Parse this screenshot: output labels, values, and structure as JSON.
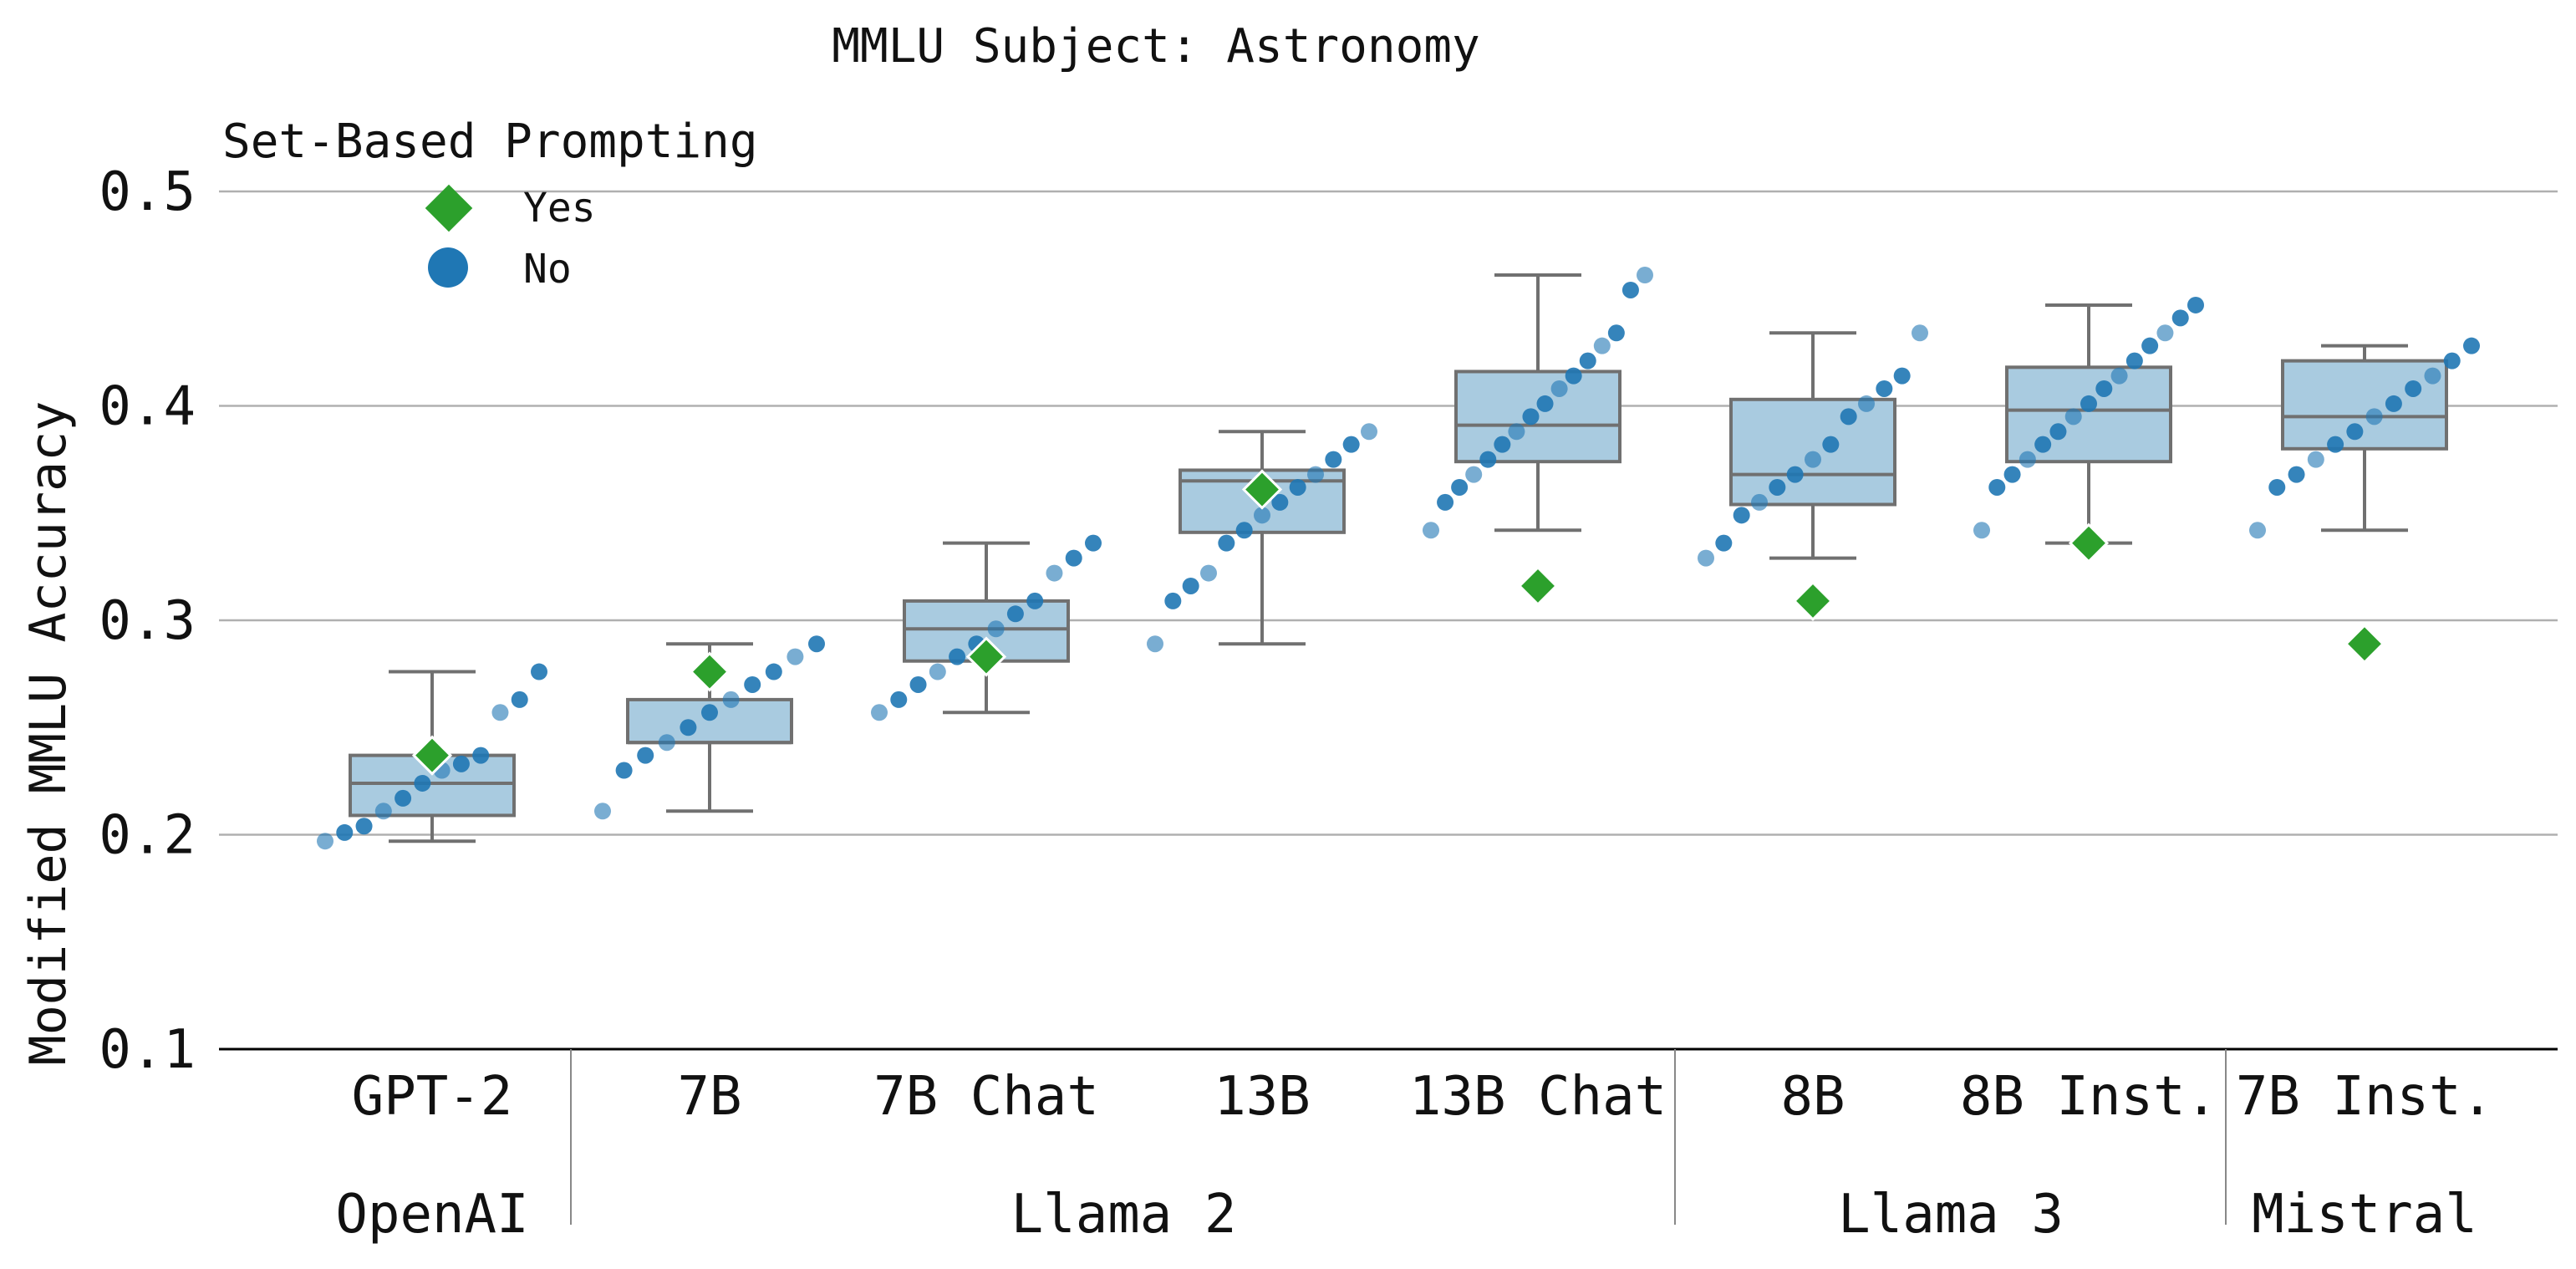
{
  "chart_data": {
    "type": "box",
    "title": "MMLU Subject: Astronomy",
    "ylabel": "Modified MMLU Accuracy",
    "ylim": [
      0.1,
      0.5
    ],
    "yticks": [
      "0.1",
      "0.2",
      "0.3",
      "0.4",
      "0.5"
    ],
    "grid": "horizontal",
    "legend": {
      "title": "Set-Based Prompting",
      "placement": "top-left",
      "entries": [
        {
          "label": "Yes",
          "marker": "diamond",
          "color": "#2ca02c"
        },
        {
          "label": "No",
          "marker": "circle",
          "color": "#1f77b4"
        }
      ]
    },
    "colors": {
      "box_fill": "#a9cbe0",
      "box_edge": "#707070",
      "points": "#1f77b4",
      "diamond": "#2ca02c",
      "grid": "#b0b0b0"
    },
    "groups": [
      {
        "label": "OpenAI",
        "start": 0,
        "end": 0
      },
      {
        "label": "Llama 2",
        "start": 1,
        "end": 4
      },
      {
        "label": "Llama 3",
        "start": 5,
        "end": 6
      },
      {
        "label": "Mistral",
        "start": 7,
        "end": 7
      }
    ],
    "categories": [
      "GPT-2",
      "7B",
      "7B Chat",
      "13B",
      "13B Chat",
      "8B",
      "8B Inst.",
      "7B Inst."
    ],
    "boxes": [
      {
        "whisker_low": 0.197,
        "q1": 0.209,
        "median": 0.224,
        "q3": 0.237,
        "whisker_high": 0.276
      },
      {
        "whisker_low": 0.211,
        "q1": 0.243,
        "median": 0.243,
        "q3": 0.263,
        "whisker_high": 0.289
      },
      {
        "whisker_low": 0.257,
        "q1": 0.281,
        "median": 0.296,
        "q3": 0.309,
        "whisker_high": 0.336
      },
      {
        "whisker_low": 0.289,
        "q1": 0.341,
        "median": 0.365,
        "q3": 0.37,
        "whisker_high": 0.388
      },
      {
        "whisker_low": 0.342,
        "q1": 0.374,
        "median": 0.391,
        "q3": 0.416,
        "whisker_high": 0.461
      },
      {
        "whisker_low": 0.329,
        "q1": 0.354,
        "median": 0.368,
        "q3": 0.403,
        "whisker_high": 0.434
      },
      {
        "whisker_low": 0.336,
        "q1": 0.374,
        "median": 0.398,
        "q3": 0.418,
        "whisker_high": 0.447
      },
      {
        "whisker_low": 0.342,
        "q1": 0.38,
        "median": 0.395,
        "q3": 0.421,
        "whisker_high": 0.428
      }
    ],
    "set_based_yes": [
      0.237,
      0.276,
      0.283,
      0.361,
      0.316,
      0.309,
      0.336,
      0.289
    ],
    "no_points": [
      [
        0.197,
        0.201,
        0.204,
        0.211,
        0.217,
        0.224,
        0.23,
        0.233,
        0.237,
        0.257,
        0.263,
        0.276
      ],
      [
        0.211,
        0.23,
        0.237,
        0.243,
        0.25,
        0.257,
        0.263,
        0.27,
        0.276,
        0.283,
        0.289
      ],
      [
        0.257,
        0.263,
        0.27,
        0.276,
        0.283,
        0.289,
        0.296,
        0.303,
        0.309,
        0.322,
        0.329,
        0.336
      ],
      [
        0.289,
        0.309,
        0.316,
        0.322,
        0.336,
        0.342,
        0.349,
        0.355,
        0.362,
        0.368,
        0.375,
        0.382,
        0.388
      ],
      [
        0.342,
        0.355,
        0.362,
        0.368,
        0.375,
        0.382,
        0.388,
        0.395,
        0.401,
        0.408,
        0.414,
        0.421,
        0.428,
        0.434,
        0.454,
        0.461
      ],
      [
        0.329,
        0.336,
        0.349,
        0.355,
        0.362,
        0.368,
        0.375,
        0.382,
        0.395,
        0.401,
        0.408,
        0.414,
        0.434
      ],
      [
        0.342,
        0.362,
        0.368,
        0.375,
        0.382,
        0.388,
        0.395,
        0.401,
        0.408,
        0.414,
        0.421,
        0.428,
        0.434,
        0.441,
        0.447
      ],
      [
        0.342,
        0.362,
        0.368,
        0.375,
        0.382,
        0.388,
        0.395,
        0.401,
        0.408,
        0.414,
        0.421,
        0.428
      ]
    ]
  }
}
